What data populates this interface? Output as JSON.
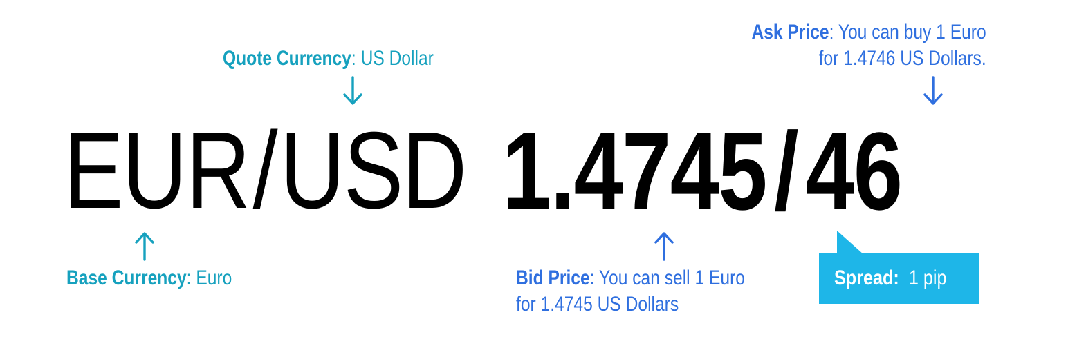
{
  "pair": {
    "base": "EUR",
    "separator": "/",
    "quote": "USD"
  },
  "price": {
    "bid": "1.4745",
    "separator": "/",
    "ask_suffix": "46"
  },
  "annotations": {
    "quote_currency": {
      "term": "Quote Currency",
      "colon": ":",
      "desc": " US Dollar"
    },
    "base_currency": {
      "term": "Base Currency",
      "colon": ":",
      "desc": " Euro"
    },
    "bid_price": {
      "term": "Bid Price",
      "colon": ":",
      "desc_line1": " You can sell 1 Euro",
      "desc_line2": "for 1.4745 US Dollars"
    },
    "ask_price": {
      "term": "Ask Price",
      "colon": ":",
      "desc_line1": " You can buy 1 Euro",
      "desc_line2": "for 1.4746 US Dollars."
    },
    "spread": {
      "term": "Spread:",
      "value": "1 pip"
    }
  },
  "colors": {
    "currency_label": "#16a1be",
    "price_label": "#2f6fdf",
    "spread_box": "#1eb6e8",
    "main_text": "#000000"
  },
  "icons": {
    "quote_arrow": "arrow-down-icon",
    "base_arrow": "arrow-up-icon",
    "bid_arrow": "arrow-up-icon",
    "ask_arrow": "arrow-down-icon"
  }
}
